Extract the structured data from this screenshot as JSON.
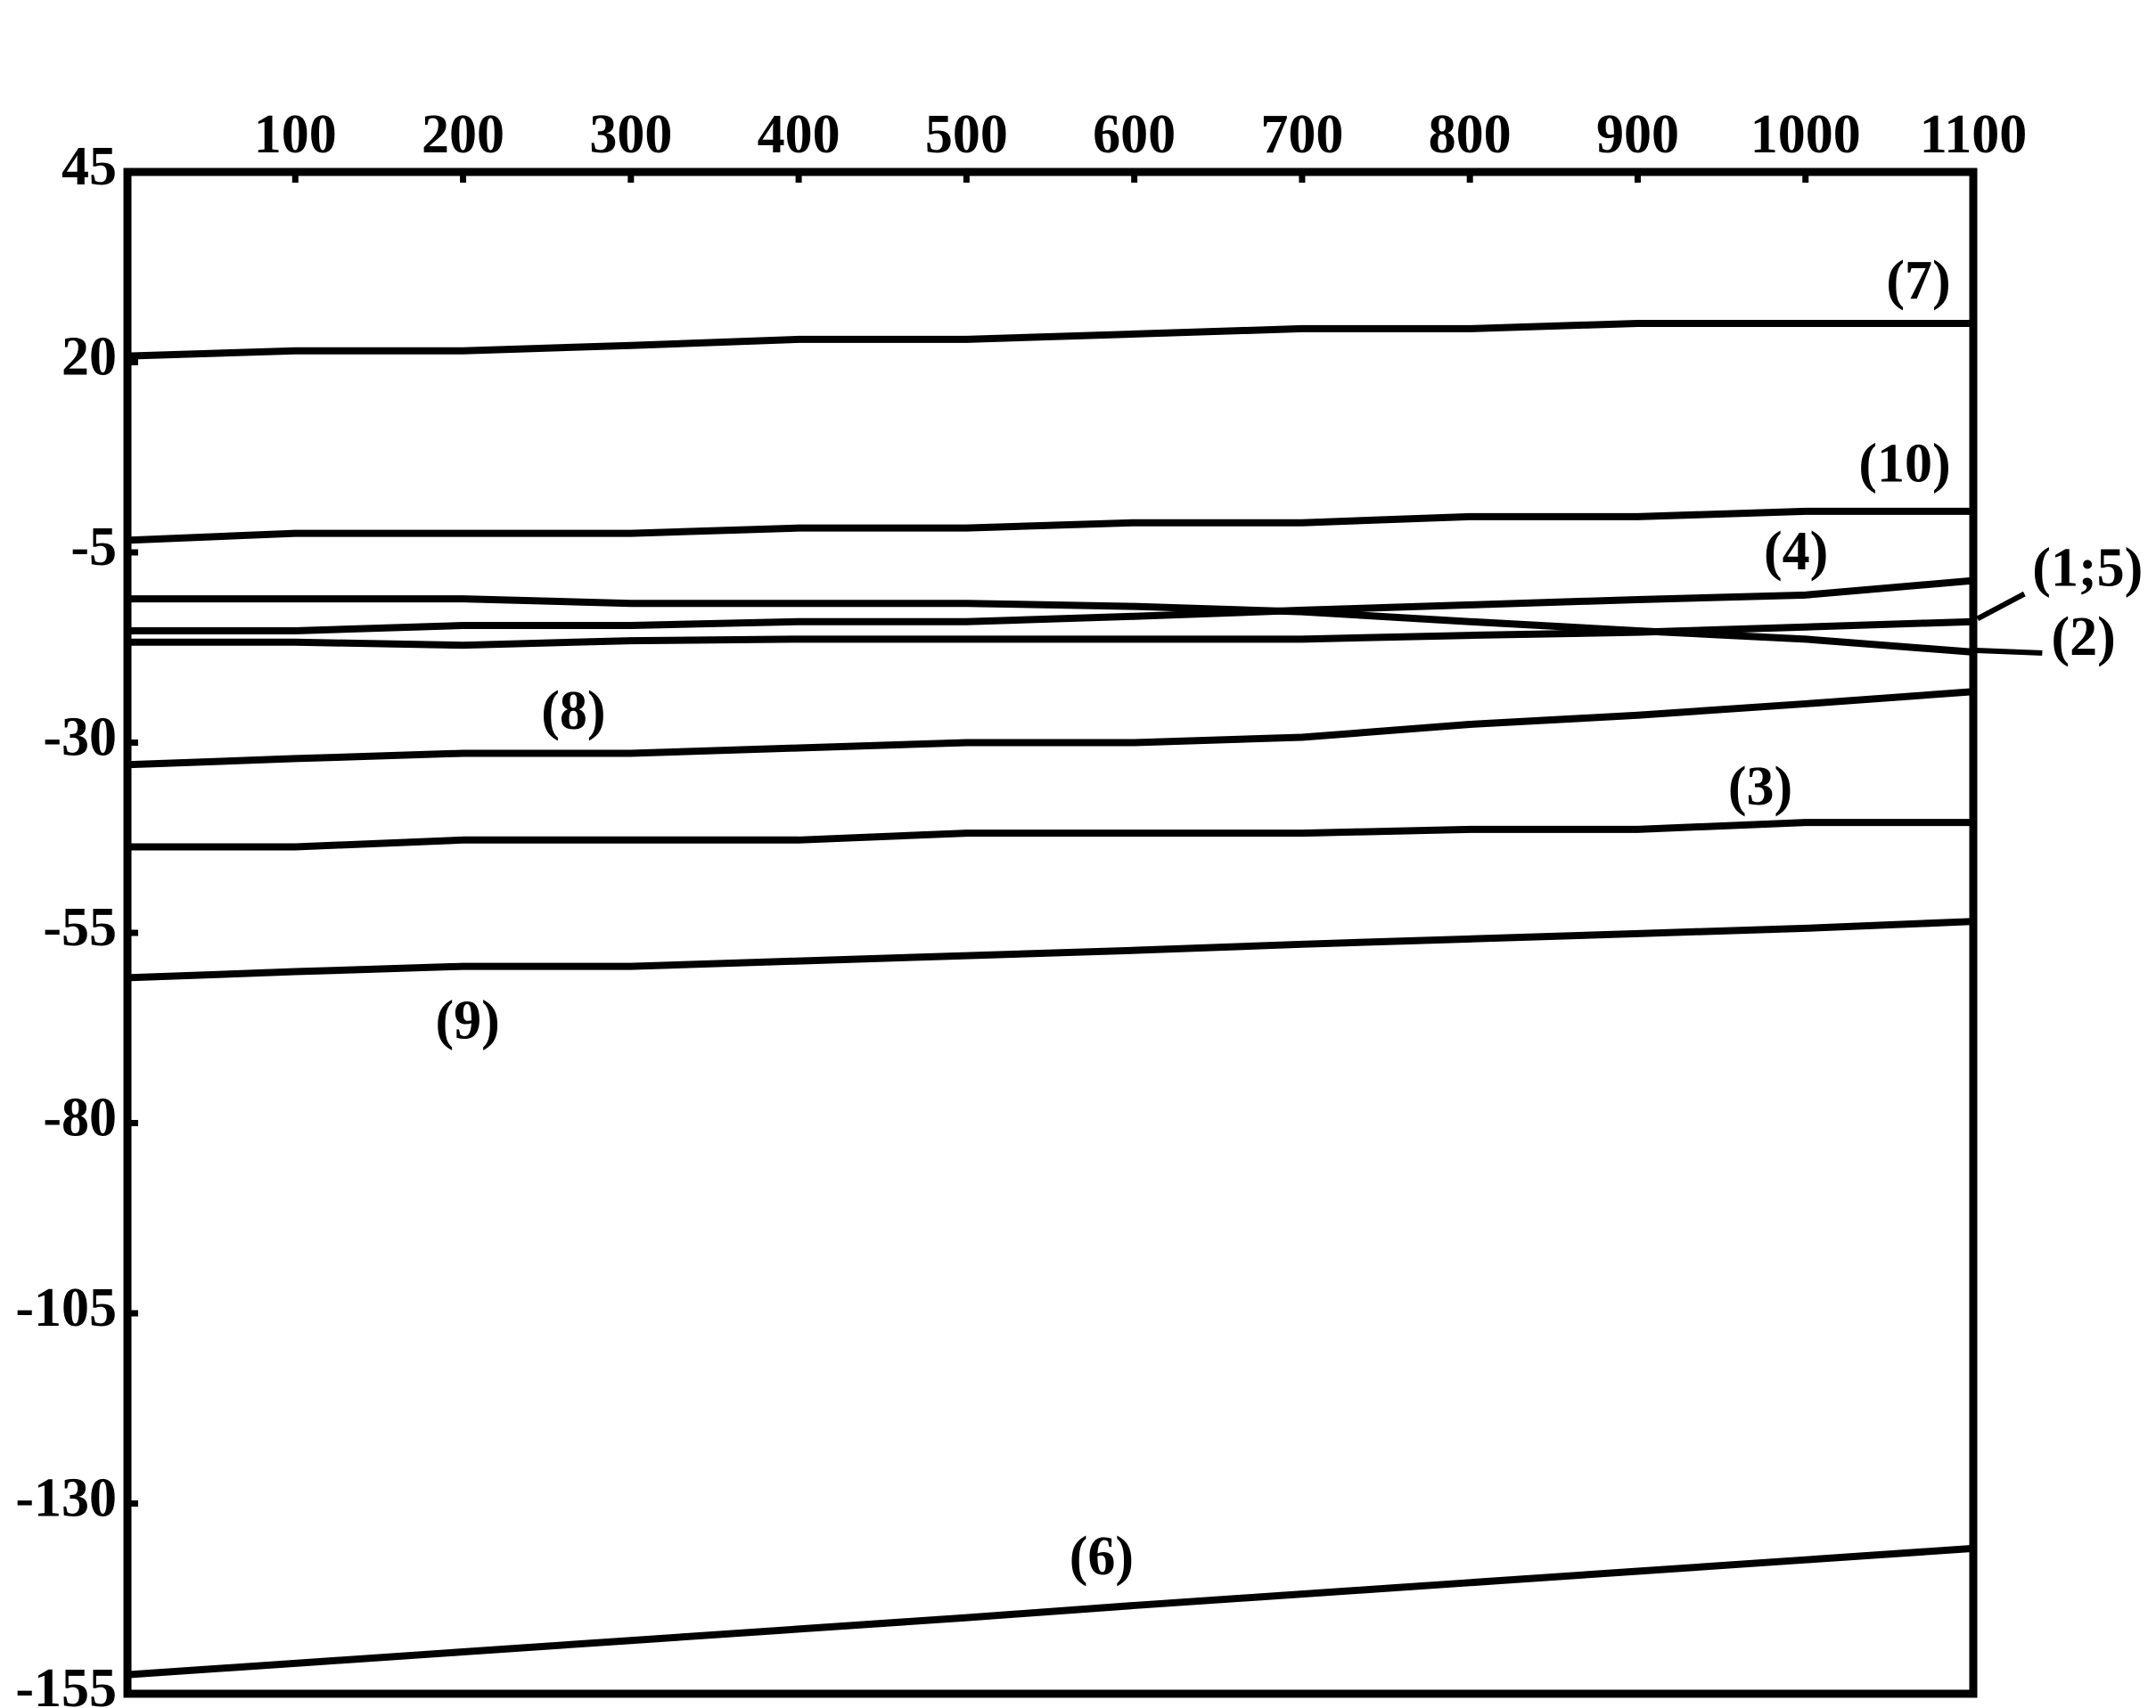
{
  "chart_data": {
    "type": "line",
    "x": [
      0,
      100,
      200,
      300,
      400,
      500,
      600,
      700,
      800,
      900,
      1000,
      1100
    ],
    "xlim": [
      0,
      1100
    ],
    "xticks": [
      100,
      200,
      300,
      400,
      500,
      600,
      700,
      800,
      900,
      1000,
      1100
    ],
    "ylim": [
      -155,
      45
    ],
    "yticks": [
      45,
      20,
      -5,
      -30,
      -55,
      -80,
      -105,
      -130,
      -155
    ],
    "grid": false,
    "series": [
      {
        "name": "(7)",
        "color": "#000000",
        "values": [
          20.8,
          21.5,
          21.5,
          22.2,
          23.0,
          23.0,
          23.7,
          24.4,
          24.4,
          25.1,
          25.1,
          25.1
        ]
      },
      {
        "name": "(10)",
        "color": "#000000",
        "values": [
          -3.4,
          -2.5,
          -2.5,
          -2.5,
          -1.8,
          -1.8,
          -1.1,
          -1.1,
          -0.3,
          -0.3,
          0.4,
          0.4
        ]
      },
      {
        "name": "(4)",
        "color": "#000000",
        "values": [
          -15.3,
          -15.3,
          -14.6,
          -14.6,
          -14.1,
          -14.1,
          -13.4,
          -12.6,
          -11.9,
          -11.2,
          -10.6,
          -8.7
        ]
      },
      {
        "name": "(1;5)",
        "color": "#000000",
        "values": [
          -16.8,
          -16.8,
          -17.2,
          -16.6,
          -16.4,
          -16.4,
          -16.4,
          -16.4,
          -15.9,
          -15.5,
          -14.8,
          -14.1
        ]
      },
      {
        "name": "(2)",
        "color": "#000000",
        "values": [
          -11.1,
          -11.1,
          -11.1,
          -11.7,
          -11.7,
          -11.7,
          -12.1,
          -12.8,
          -14.1,
          -15.3,
          -16.4,
          -18.1
        ]
      },
      {
        "name": "(8)",
        "color": "#000000",
        "values": [
          -32.9,
          -32.1,
          -31.4,
          -31.4,
          -30.7,
          -30.0,
          -30.0,
          -29.3,
          -27.6,
          -26.4,
          -24.9,
          -23.3
        ]
      },
      {
        "name": "(3)",
        "color": "#000000",
        "values": [
          -43.7,
          -43.7,
          -42.8,
          -42.8,
          -42.8,
          -41.9,
          -41.9,
          -41.9,
          -41.4,
          -41.4,
          -40.5,
          -40.5
        ]
      },
      {
        "name": "(9)",
        "color": "#000000",
        "values": [
          -60.9,
          -60.1,
          -59.4,
          -59.4,
          -58.7,
          -58.0,
          -57.3,
          -56.5,
          -55.8,
          -55.1,
          -54.4,
          -53.5
        ]
      },
      {
        "name": "(6)",
        "color": "#000000",
        "values": [
          -152.5,
          -151.0,
          -149.5,
          -148.0,
          -146.5,
          -145.0,
          -143.4,
          -141.9,
          -140.4,
          -138.9,
          -137.4,
          -135.9
        ]
      }
    ]
  }
}
